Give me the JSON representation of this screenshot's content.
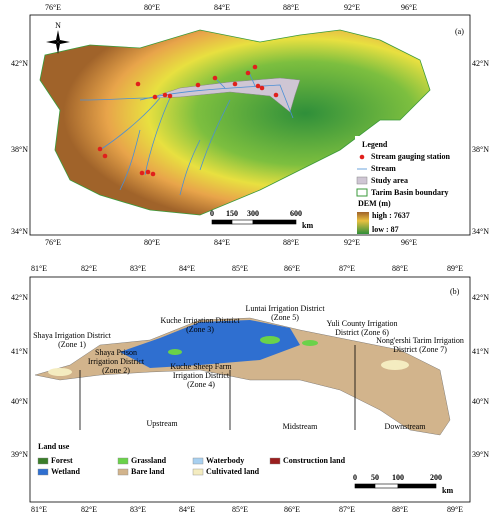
{
  "panel_a": {
    "label": "(a)",
    "north": "N",
    "lon_labels": [
      "76°E",
      "80°E",
      "84°E",
      "88°E",
      "92°E",
      "96°E"
    ],
    "lat_labels": [
      "42°N",
      "38°N",
      "34°N"
    ],
    "legend": {
      "title": "Legend",
      "items": [
        "Stream gauging station",
        "Stream",
        "Study area",
        "Tarim Basin boundary"
      ],
      "dem_title": "DEM (m)",
      "dem_high": "high : 7637",
      "dem_low": "low : 87"
    },
    "scale": [
      "0",
      "150",
      "300",
      "600"
    ],
    "scale_unit": "km"
  },
  "panel_b": {
    "label": "(b)",
    "lon_labels": [
      "81°E",
      "82°E",
      "83°E",
      "84°E",
      "85°E",
      "86°E",
      "87°E",
      "88°E",
      "89°E"
    ],
    "lat_labels": [
      "42°N",
      "41°N",
      "40°N",
      "39°N"
    ],
    "zones": [
      {
        "lines": [
          "Shaya Irrigation District",
          "(Zone 1)"
        ]
      },
      {
        "lines": [
          "Shaya Prison",
          "Irrigation District",
          "(Zone 2)"
        ]
      },
      {
        "lines": [
          "Kuche Irrigation District",
          "(Zone 3)"
        ]
      },
      {
        "lines": [
          "Kuche Sheep Farm",
          "Irrigation District",
          "(Zone 4)"
        ]
      },
      {
        "lines": [
          "Luntai Irrigation District",
          "(Zone 5)"
        ]
      },
      {
        "lines": [
          "Yuli County Irrigation",
          "District (Zone 6)"
        ]
      },
      {
        "lines": [
          "Nong'ershi Tarim Irrigation",
          "District (Zone 7)"
        ]
      }
    ],
    "reaches": [
      "Upstream",
      "Midstream",
      "Downstream"
    ],
    "legend": {
      "title": "Land use",
      "items": [
        "Forest",
        "Grassland",
        "Waterbody",
        "Construction land",
        "Wetland",
        "Bare land",
        "Cultivated land"
      ]
    },
    "scale": [
      "0",
      "50",
      "100",
      "200"
    ],
    "scale_unit": "km"
  }
}
